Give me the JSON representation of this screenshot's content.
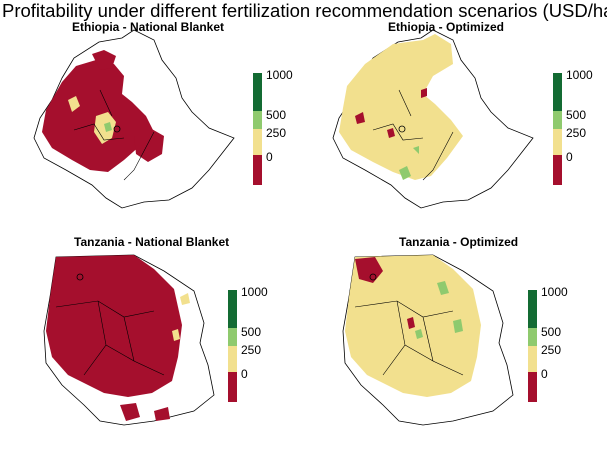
{
  "title": "Profitability under different fertilization recommendation scenarios (USD/ha)",
  "colors": {
    "negative": "#a50f2d",
    "low": "#f2e08e",
    "medium": "#8fca6e",
    "high": "#136b33",
    "outline": "#000000"
  },
  "legend": {
    "ticks": [
      "1000",
      "500",
      "250",
      "0"
    ]
  },
  "panels": [
    {
      "id": "eth-nb",
      "title": "Ethiopia - National Blanket",
      "dominant": "negative"
    },
    {
      "id": "eth-opt",
      "title": "Ethiopia - Optimized",
      "dominant": "low"
    },
    {
      "id": "tza-nb",
      "title": "Tanzania - National Blanket",
      "dominant": "negative"
    },
    {
      "id": "tza-opt",
      "title": "Tanzania - Optimized",
      "dominant": "low"
    }
  ]
}
